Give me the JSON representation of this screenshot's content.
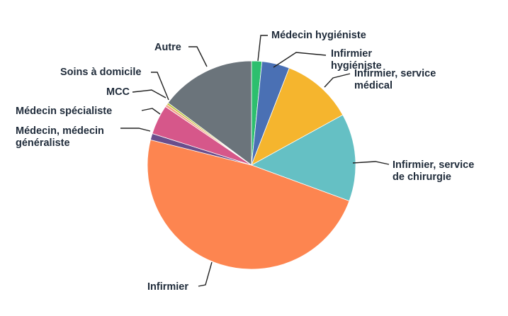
{
  "chart_data": {
    "type": "pie",
    "title": "",
    "start_angle_deg": 0,
    "direction": "clockwise",
    "slices": [
      {
        "label": [
          "Médecin hygiéniste"
        ],
        "value": 1.6,
        "color": "#2dbf6e"
      },
      {
        "label": [
          "Infirmier",
          "hygiéniste"
        ],
        "value": 4.3,
        "color": "#4a70b4"
      },
      {
        "label": [
          "Infirmier, service",
          "médical"
        ],
        "value": 11.1,
        "color": "#f5b52e"
      },
      {
        "label": [
          "Infirmier, service",
          "de chirurgie"
        ],
        "value": 13.6,
        "color": "#65c0c4"
      },
      {
        "label": [
          "Infirmier"
        ],
        "value": 48.3,
        "color": "#fd8550"
      },
      {
        "label": [
          "Médecin, médecin",
          "généraliste"
        ],
        "value": 1.0,
        "color": "#6a4e8c"
      },
      {
        "label": [
          "Médecin spécialiste"
        ],
        "value": 4.6,
        "color": "#d6578a"
      },
      {
        "label": [
          "MCC"
        ],
        "value": 0.4,
        "color": "#f3a488"
      },
      {
        "label": [
          "Soins à domicile"
        ],
        "value": 0.3,
        "color": "#b8c22e"
      },
      {
        "label": [
          "Autre"
        ],
        "value": 14.8,
        "color": "#6b747b"
      }
    ]
  }
}
